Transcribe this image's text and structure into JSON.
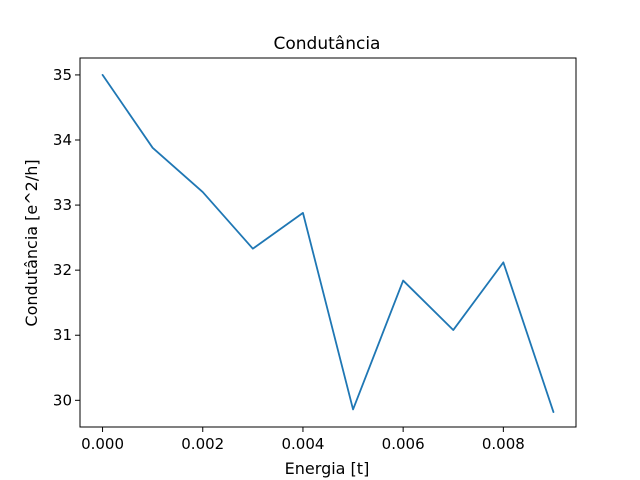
{
  "chart_data": {
    "type": "line",
    "title": "Condutância",
    "xlabel": "Energia [t]",
    "ylabel": "Condutância [e^2/h]",
    "xlim": [
      -0.00045,
      0.00945
    ],
    "ylim": [
      29.59,
      35.26
    ],
    "xticks": [
      0.0,
      0.002,
      0.004,
      0.006,
      0.008
    ],
    "xtick_labels": [
      "0.000",
      "0.002",
      "0.004",
      "0.006",
      "0.008"
    ],
    "yticks": [
      30,
      31,
      32,
      33,
      34,
      35
    ],
    "ytick_labels": [
      "30",
      "31",
      "32",
      "33",
      "34",
      "35"
    ],
    "grid": false,
    "series": [
      {
        "color": "#1f77b4",
        "x": [
          0.0,
          0.001,
          0.002,
          0.003,
          0.004,
          0.005,
          0.006,
          0.007,
          0.008,
          0.009
        ],
        "y": [
          35.0,
          33.88,
          33.2,
          32.33,
          32.88,
          29.86,
          31.84,
          31.08,
          32.12,
          29.82
        ]
      }
    ]
  }
}
